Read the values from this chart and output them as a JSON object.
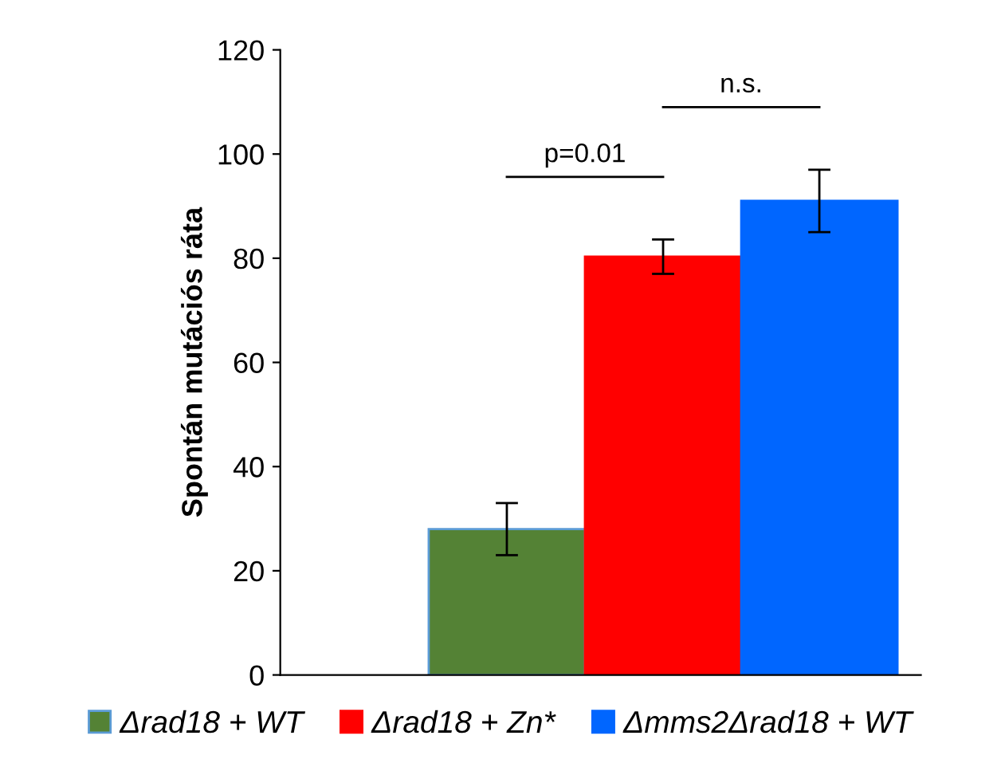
{
  "chart_data": {
    "type": "bar",
    "ylabel": "Spontán mutációs ráta",
    "categories": [
      null
    ],
    "series": [
      {
        "name": "Δrad18 + WT",
        "color": "#548235",
        "values": [
          28
        ],
        "errors": [
          5
        ]
      },
      {
        "name": "Δrad18 + Zn*",
        "color": "#ff0000",
        "values": [
          80.3
        ],
        "errors": [
          3.3
        ]
      },
      {
        "name": "Δmms2Δrad18 + WT",
        "color": "#0066ff",
        "values": [
          91
        ],
        "errors": [
          6
        ]
      }
    ],
    "ylim": [
      0,
      120
    ],
    "yticks": [
      0,
      20,
      40,
      60,
      80,
      100,
      120
    ],
    "annotations": [
      "p=0.01",
      "n.s."
    ],
    "grid": false,
    "legend": "bottom"
  }
}
